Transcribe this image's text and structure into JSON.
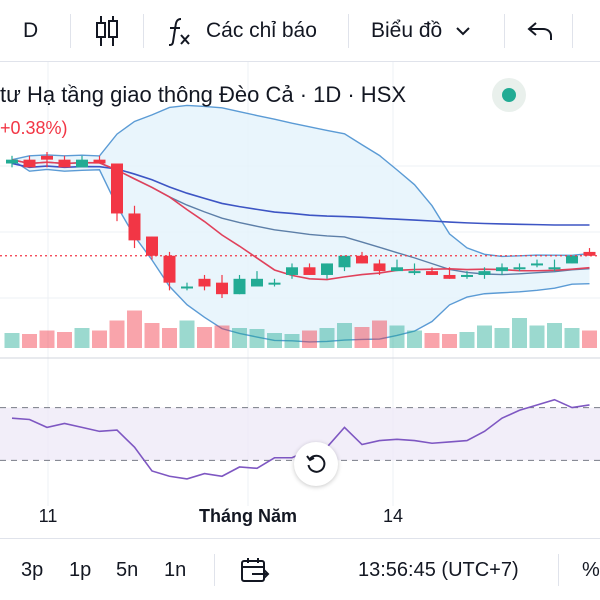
{
  "toolbar": {
    "interval_partial": "D",
    "indicators_label": "Các chỉ báo",
    "chart_type_label": "Biểu đồ",
    "icons": [
      "candlestick-icon",
      "function-icon",
      "chevron-down-icon",
      "undo-icon"
    ]
  },
  "legend": {
    "title": "tư Hạ tầng giao thông Đèo Cả · 1D · HSX",
    "change": "+0.38%)",
    "status_color": "#22ab94"
  },
  "colors": {
    "up": "#22ab94",
    "down": "#f23645",
    "bb_band": "#5b9bd5",
    "bb_fill": "#e3f2fb",
    "ma_red": "#e0415b",
    "ma_blue": "#3d55c4",
    "ma_steel": "#5d7fa8",
    "rsi_line": "#7e57c2",
    "rsi_fill": "#ede7f6"
  },
  "time_axis": {
    "labels": [
      {
        "text": "11",
        "bold": false
      },
      {
        "text": "Tháng Năm",
        "bold": true
      },
      {
        "text": "14",
        "bold": false
      }
    ]
  },
  "bottombar": {
    "ranges": [
      "3p",
      "1p",
      "5n",
      "1n"
    ],
    "clock": "13:56:45 (UTC+7)",
    "percent_partial": "%"
  },
  "chart_data": {
    "type": "candlestick",
    "candles": [
      {
        "o": 10.0,
        "h": 10.1,
        "l": 9.95,
        "c": 10.05
      },
      {
        "o": 10.05,
        "h": 10.1,
        "l": 9.95,
        "c": 9.95
      },
      {
        "o": 10.1,
        "h": 10.15,
        "l": 9.95,
        "c": 10.05
      },
      {
        "o": 10.05,
        "h": 10.1,
        "l": 9.95,
        "c": 9.95
      },
      {
        "o": 9.95,
        "h": 10.1,
        "l": 9.95,
        "c": 10.05
      },
      {
        "o": 10.05,
        "h": 10.1,
        "l": 10.0,
        "c": 10.0
      },
      {
        "o": 10.0,
        "h": 10.0,
        "l": 9.25,
        "c": 9.35
      },
      {
        "o": 9.35,
        "h": 9.45,
        "l": 8.9,
        "c": 9.0
      },
      {
        "o": 9.05,
        "h": 9.05,
        "l": 8.75,
        "c": 8.8
      },
      {
        "o": 8.8,
        "h": 8.85,
        "l": 8.35,
        "c": 8.45
      },
      {
        "o": 8.4,
        "h": 8.45,
        "l": 8.35,
        "c": 8.4
      },
      {
        "o": 8.5,
        "h": 8.55,
        "l": 8.35,
        "c": 8.4
      },
      {
        "o": 8.45,
        "h": 8.55,
        "l": 8.25,
        "c": 8.3
      },
      {
        "o": 8.3,
        "h": 8.55,
        "l": 8.3,
        "c": 8.5
      },
      {
        "o": 8.4,
        "h": 8.6,
        "l": 8.4,
        "c": 8.5
      },
      {
        "o": 8.45,
        "h": 8.5,
        "l": 8.4,
        "c": 8.45
      },
      {
        "o": 8.55,
        "h": 8.7,
        "l": 8.5,
        "c": 8.65
      },
      {
        "o": 8.65,
        "h": 8.7,
        "l": 8.55,
        "c": 8.55
      },
      {
        "o": 8.55,
        "h": 8.7,
        "l": 8.5,
        "c": 8.7
      },
      {
        "o": 8.65,
        "h": 8.8,
        "l": 8.6,
        "c": 8.8
      },
      {
        "o": 8.8,
        "h": 8.85,
        "l": 8.7,
        "c": 8.7
      },
      {
        "o": 8.7,
        "h": 8.75,
        "l": 8.55,
        "c": 8.6
      },
      {
        "o": 8.6,
        "h": 8.75,
        "l": 8.6,
        "c": 8.65
      },
      {
        "o": 8.6,
        "h": 8.7,
        "l": 8.55,
        "c": 8.6
      },
      {
        "o": 8.6,
        "h": 8.65,
        "l": 8.55,
        "c": 8.55
      },
      {
        "o": 8.55,
        "h": 8.65,
        "l": 8.5,
        "c": 8.5
      },
      {
        "o": 8.55,
        "h": 8.6,
        "l": 8.5,
        "c": 8.55
      },
      {
        "o": 8.55,
        "h": 8.65,
        "l": 8.5,
        "c": 8.6
      },
      {
        "o": 8.6,
        "h": 8.7,
        "l": 8.55,
        "c": 8.65
      },
      {
        "o": 8.65,
        "h": 8.7,
        "l": 8.6,
        "c": 8.65
      },
      {
        "o": 8.7,
        "h": 8.75,
        "l": 8.65,
        "c": 8.7
      },
      {
        "o": 8.65,
        "h": 8.75,
        "l": 8.6,
        "c": 8.65
      },
      {
        "o": 8.7,
        "h": 8.8,
        "l": 8.7,
        "c": 8.8
      },
      {
        "o": 8.85,
        "h": 8.9,
        "l": 8.8,
        "c": 8.8
      }
    ],
    "volume": [
      30,
      28,
      35,
      32,
      40,
      35,
      55,
      75,
      50,
      40,
      55,
      42,
      45,
      40,
      38,
      30,
      28,
      35,
      40,
      50,
      42,
      55,
      45,
      35,
      30,
      28,
      32,
      45,
      40,
      60,
      45,
      50,
      40,
      35
    ],
    "rsi": [
      62,
      61,
      55,
      58,
      55,
      52,
      53,
      40,
      22,
      18,
      16,
      20,
      18,
      25,
      24,
      32,
      32,
      38,
      40,
      55,
      42,
      45,
      46,
      45,
      43,
      44,
      45,
      52,
      62,
      68,
      72,
      76,
      70,
      72
    ]
  }
}
